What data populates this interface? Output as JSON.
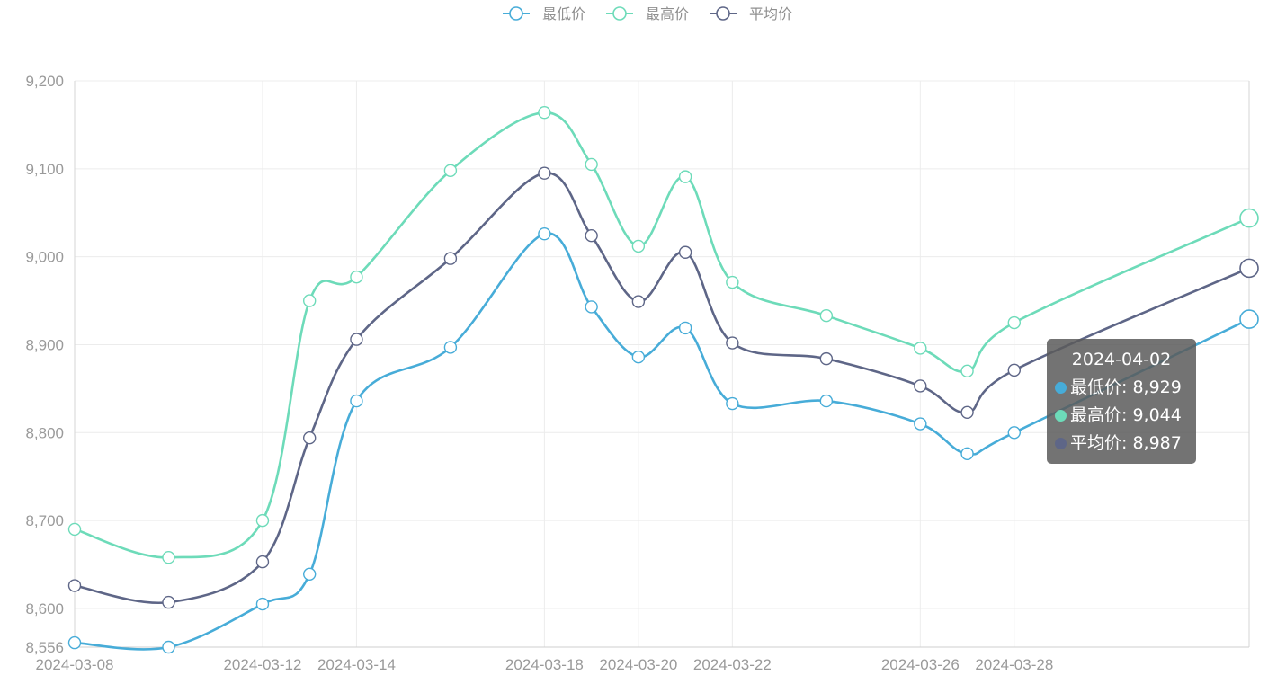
{
  "chart_data": {
    "type": "line",
    "x": [
      "2024-03-08",
      "2024-03-10",
      "2024-03-12",
      "2024-03-13",
      "2024-03-14",
      "2024-03-16",
      "2024-03-18",
      "2024-03-19",
      "2024-03-20",
      "2024-03-21",
      "2024-03-22",
      "2024-03-24",
      "2024-03-26",
      "2024-03-27",
      "2024-03-28",
      "2024-04-02"
    ],
    "x_ticks": [
      "2024-03-08",
      "2024-03-12",
      "2024-03-14",
      "2024-03-18",
      "2024-03-20",
      "2024-03-22",
      "2024-03-26",
      "2024-03-28"
    ],
    "y_ticks": [
      "9,200",
      "9,100",
      "9,000",
      "8,900",
      "8,800",
      "8,700",
      "8,600",
      "8,556"
    ],
    "ylim": [
      8556,
      9200
    ],
    "smooth": true,
    "series": [
      {
        "name": "最低价",
        "color": "#47acd8",
        "values": [
          8561,
          8556,
          8605,
          8639,
          8836,
          8897,
          9026,
          8943,
          8886,
          8919,
          8833,
          8836,
          8810,
          8776,
          8800,
          8929
        ]
      },
      {
        "name": "最高价",
        "color": "#6ddbb9",
        "values": [
          8690,
          8658,
          8700,
          8950,
          8977,
          9098,
          9164,
          9105,
          9012,
          9091,
          8971,
          8933,
          8896,
          8870,
          8925,
          9044
        ]
      },
      {
        "name": "平均价",
        "color": "#5e6687",
        "values": [
          8626,
          8607,
          8653,
          8794,
          8906,
          8998,
          9095,
          9024,
          8949,
          9005,
          8902,
          8884,
          8853,
          8823,
          8871,
          8987
        ]
      }
    ],
    "grid": true,
    "legend": "top-center"
  },
  "tooltip": {
    "title": "2024-04-02",
    "rows": [
      {
        "text": "最低价: 8,929",
        "color": "#47acd8"
      },
      {
        "text": "最高价: 9,044",
        "color": "#6ddbb9"
      },
      {
        "text": "平均价: 8,987",
        "color": "#5e6687"
      }
    ]
  }
}
